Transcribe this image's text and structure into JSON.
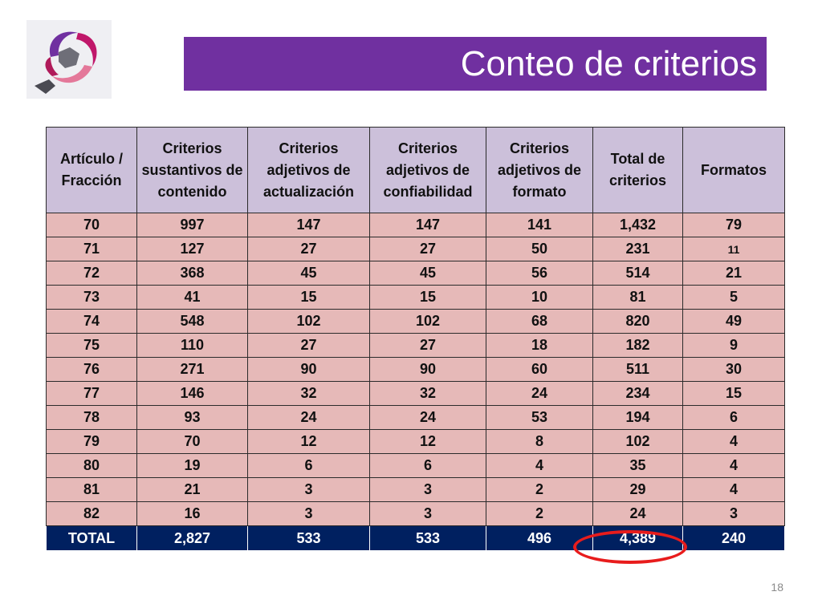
{
  "title": "Conteo de criterios",
  "logo_icon": "institutional-logo-icon",
  "colors": {
    "title_bg": "#7030a0",
    "header_bg": "#ccc0da",
    "row_bg": "#e6b9b8",
    "total_bg": "#002060",
    "highlight": "#e81c1c"
  },
  "table": {
    "headers": [
      "Artículo / Fracción",
      "Criterios sustantivos de contenido",
      "Criterios adjetivos de actualización",
      "Criterios adjetivos de confiabilidad",
      "Criterios adjetivos de formato",
      "Total de criterios",
      "Formatos"
    ],
    "rows": [
      [
        "70",
        "997",
        "147",
        "147",
        "141",
        "1,432",
        "79"
      ],
      [
        "71",
        "127",
        "27",
        "27",
        "50",
        "231",
        "11"
      ],
      [
        "72",
        "368",
        "45",
        "45",
        "56",
        "514",
        "21"
      ],
      [
        "73",
        "41",
        "15",
        "15",
        "10",
        "81",
        "5"
      ],
      [
        "74",
        "548",
        "102",
        "102",
        "68",
        "820",
        "49"
      ],
      [
        "75",
        "110",
        "27",
        "27",
        "18",
        "182",
        "9"
      ],
      [
        "76",
        "271",
        "90",
        "90",
        "60",
        "511",
        "30"
      ],
      [
        "77",
        "146",
        "32",
        "32",
        "24",
        "234",
        "15"
      ],
      [
        "78",
        "93",
        "24",
        "24",
        "53",
        "194",
        "6"
      ],
      [
        "79",
        "70",
        "12",
        "12",
        "8",
        "102",
        "4"
      ],
      [
        "80",
        "19",
        "6",
        "6",
        "4",
        "35",
        "4"
      ],
      [
        "81",
        "21",
        "3",
        "3",
        "2",
        "29",
        "4"
      ],
      [
        "82",
        "16",
        "3",
        "3",
        "2",
        "24",
        "3"
      ]
    ],
    "total": [
      "TOTAL",
      "2,827",
      "533",
      "533",
      "496",
      "4,389",
      "240"
    ]
  },
  "page_number": "18"
}
